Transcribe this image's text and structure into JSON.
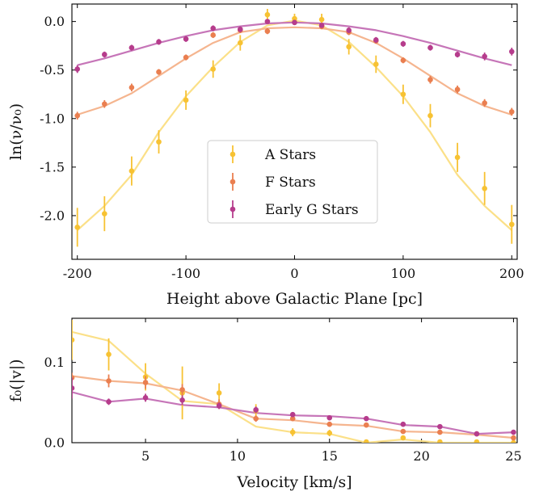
{
  "chart_data": [
    {
      "type": "line",
      "xlabel": "Height above Galactic Plane [pc]",
      "ylabel": "ln(ν/ν₀)",
      "xlim": [
        -205,
        205
      ],
      "ylim": [
        -2.45,
        0.18
      ],
      "xticks": [
        -200,
        -100,
        0,
        100,
        200
      ],
      "xtick_labels": [
        "-200",
        "-100",
        "0",
        "100",
        "200"
      ],
      "yticks": [
        0,
        -0.5,
        -1,
        -1.5,
        -2
      ],
      "ytick_labels": [
        "0.0",
        "-0.5",
        "-1.0",
        "-1.5",
        "-2.0"
      ],
      "grid": false,
      "legend_position": "center",
      "series": [
        {
          "name": "A Stars",
          "color": "#f7c233",
          "line_color": "#fbe088",
          "points": [
            {
              "x": -200,
              "y": -2.12,
              "err": 0.2
            },
            {
              "x": -175,
              "y": -1.98,
              "err": 0.18
            },
            {
              "x": -150,
              "y": -1.54,
              "err": 0.15
            },
            {
              "x": -125,
              "y": -1.24,
              "err": 0.12
            },
            {
              "x": -100,
              "y": -0.81,
              "err": 0.1
            },
            {
              "x": -75,
              "y": -0.49,
              "err": 0.09
            },
            {
              "x": -50,
              "y": -0.22,
              "err": 0.08
            },
            {
              "x": -25,
              "y": 0.07,
              "err": 0.06
            },
            {
              "x": 0,
              "y": 0.03,
              "err": 0.05
            },
            {
              "x": 25,
              "y": 0.02,
              "err": 0.06
            },
            {
              "x": 50,
              "y": -0.26,
              "err": 0.08
            },
            {
              "x": 75,
              "y": -0.44,
              "err": 0.09
            },
            {
              "x": 100,
              "y": -0.75,
              "err": 0.1
            },
            {
              "x": 125,
              "y": -0.97,
              "err": 0.12
            },
            {
              "x": 150,
              "y": -1.4,
              "err": 0.15
            },
            {
              "x": 175,
              "y": -1.72,
              "err": 0.17
            },
            {
              "x": 200,
              "y": -2.09,
              "err": 0.2
            }
          ],
          "curve": [
            {
              "x": -200,
              "y": -2.15
            },
            {
              "x": -175,
              "y": -1.9
            },
            {
              "x": -150,
              "y": -1.58
            },
            {
              "x": -125,
              "y": -1.14
            },
            {
              "x": -100,
              "y": -0.77
            },
            {
              "x": -75,
              "y": -0.47
            },
            {
              "x": -50,
              "y": -0.21
            },
            {
              "x": -25,
              "y": -0.04
            },
            {
              "x": 0,
              "y": 0.01
            },
            {
              "x": 25,
              "y": -0.04
            },
            {
              "x": 50,
              "y": -0.21
            },
            {
              "x": 75,
              "y": -0.47
            },
            {
              "x": 100,
              "y": -0.77
            },
            {
              "x": 125,
              "y": -1.14
            },
            {
              "x": 150,
              "y": -1.58
            },
            {
              "x": 175,
              "y": -1.9
            },
            {
              "x": 200,
              "y": -2.15
            }
          ]
        },
        {
          "name": "F Stars",
          "color": "#ea7f50",
          "line_color": "#f5b58f",
          "points": [
            {
              "x": -200,
              "y": -0.97,
              "err": 0.04
            },
            {
              "x": -175,
              "y": -0.85,
              "err": 0.04
            },
            {
              "x": -150,
              "y": -0.68,
              "err": 0.04
            },
            {
              "x": -125,
              "y": -0.52,
              "err": 0.03
            },
            {
              "x": -100,
              "y": -0.37,
              "err": 0.03
            },
            {
              "x": -75,
              "y": -0.14,
              "err": 0.03
            },
            {
              "x": -50,
              "y": -0.09,
              "err": 0.03
            },
            {
              "x": -25,
              "y": -0.1,
              "err": 0.03
            },
            {
              "x": 0,
              "y": -0.01,
              "err": 0.02
            },
            {
              "x": 25,
              "y": -0.05,
              "err": 0.03
            },
            {
              "x": 50,
              "y": -0.11,
              "err": 0.03
            },
            {
              "x": 75,
              "y": -0.2,
              "err": 0.03
            },
            {
              "x": 100,
              "y": -0.4,
              "err": 0.03
            },
            {
              "x": 125,
              "y": -0.6,
              "err": 0.04
            },
            {
              "x": 150,
              "y": -0.7,
              "err": 0.04
            },
            {
              "x": 175,
              "y": -0.84,
              "err": 0.04
            },
            {
              "x": 200,
              "y": -0.93,
              "err": 0.04
            }
          ],
          "curve": [
            {
              "x": -200,
              "y": -0.96
            },
            {
              "x": -175,
              "y": -0.87
            },
            {
              "x": -150,
              "y": -0.74
            },
            {
              "x": -125,
              "y": -0.56
            },
            {
              "x": -100,
              "y": -0.38
            },
            {
              "x": -75,
              "y": -0.22
            },
            {
              "x": -50,
              "y": -0.11
            },
            {
              "x": -25,
              "y": -0.07
            },
            {
              "x": 0,
              "y": -0.06
            },
            {
              "x": 25,
              "y": -0.07
            },
            {
              "x": 50,
              "y": -0.11
            },
            {
              "x": 75,
              "y": -0.22
            },
            {
              "x": 100,
              "y": -0.38
            },
            {
              "x": 125,
              "y": -0.56
            },
            {
              "x": 150,
              "y": -0.74
            },
            {
              "x": 175,
              "y": -0.87
            },
            {
              "x": 200,
              "y": -0.96
            }
          ]
        },
        {
          "name": "Early G Stars",
          "color": "#b63c8c",
          "line_color": "#c675b8",
          "points": [
            {
              "x": -200,
              "y": -0.49,
              "err": 0.04
            },
            {
              "x": -175,
              "y": -0.34,
              "err": 0.03
            },
            {
              "x": -150,
              "y": -0.27,
              "err": 0.03
            },
            {
              "x": -125,
              "y": -0.21,
              "err": 0.03
            },
            {
              "x": -100,
              "y": -0.18,
              "err": 0.03
            },
            {
              "x": -75,
              "y": -0.07,
              "err": 0.03
            },
            {
              "x": -50,
              "y": -0.08,
              "err": 0.03
            },
            {
              "x": -25,
              "y": 0.0,
              "err": 0.02
            },
            {
              "x": 0,
              "y": -0.01,
              "err": 0.02
            },
            {
              "x": 25,
              "y": -0.04,
              "err": 0.02
            },
            {
              "x": 50,
              "y": -0.09,
              "err": 0.03
            },
            {
              "x": 75,
              "y": -0.19,
              "err": 0.03
            },
            {
              "x": 100,
              "y": -0.23,
              "err": 0.03
            },
            {
              "x": 125,
              "y": -0.27,
              "err": 0.03
            },
            {
              "x": 150,
              "y": -0.34,
              "err": 0.03
            },
            {
              "x": 175,
              "y": -0.36,
              "err": 0.04
            },
            {
              "x": 200,
              "y": -0.31,
              "err": 0.04
            }
          ],
          "curve": [
            {
              "x": -200,
              "y": -0.45
            },
            {
              "x": -175,
              "y": -0.38
            },
            {
              "x": -150,
              "y": -0.3
            },
            {
              "x": -125,
              "y": -0.22
            },
            {
              "x": -100,
              "y": -0.15
            },
            {
              "x": -75,
              "y": -0.09
            },
            {
              "x": -50,
              "y": -0.05
            },
            {
              "x": -25,
              "y": -0.02
            },
            {
              "x": 0,
              "y": -0.01
            },
            {
              "x": 25,
              "y": -0.02
            },
            {
              "x": 50,
              "y": -0.05
            },
            {
              "x": 75,
              "y": -0.09
            },
            {
              "x": 100,
              "y": -0.15
            },
            {
              "x": 125,
              "y": -0.22
            },
            {
              "x": 150,
              "y": -0.3
            },
            {
              "x": 175,
              "y": -0.38
            },
            {
              "x": 200,
              "y": -0.45
            }
          ]
        }
      ]
    },
    {
      "type": "line",
      "xlabel": "Velocity [km/s]",
      "ylabel": "f₀(|v|)",
      "xlim": [
        1,
        25.2
      ],
      "ylim": [
        0,
        0.155
      ],
      "xticks": [
        5,
        10,
        15,
        20,
        25
      ],
      "xtick_labels": [
        "5",
        "10",
        "15",
        "20",
        "25"
      ],
      "yticks": [
        0,
        0.1
      ],
      "ytick_labels": [
        "0.0",
        "0.1"
      ],
      "grid": false,
      "series": [
        {
          "name": "A Stars",
          "color": "#f7c233",
          "line_color": "#fbe088",
          "points": [
            {
              "x": 1,
              "y": 0.128,
              "err": 0.025
            },
            {
              "x": 3,
              "y": 0.11,
              "err": 0.02
            },
            {
              "x": 5,
              "y": 0.082,
              "err": 0.017
            },
            {
              "x": 7,
              "y": 0.062,
              "err": 0.033
            },
            {
              "x": 9,
              "y": 0.062,
              "err": 0.012
            },
            {
              "x": 11,
              "y": 0.04,
              "err": 0.008
            },
            {
              "x": 13,
              "y": 0.013,
              "err": 0.005
            },
            {
              "x": 15,
              "y": 0.012,
              "err": 0.004
            },
            {
              "x": 17,
              "y": 0.001,
              "err": 0.002
            },
            {
              "x": 19,
              "y": 0.006,
              "err": 0.002
            },
            {
              "x": 21,
              "y": 0.001,
              "err": 0.001
            },
            {
              "x": 23,
              "y": 0.001,
              "err": 0.001
            },
            {
              "x": 25,
              "y": 0.0,
              "err": 0.001
            }
          ],
          "curve": [
            {
              "x": 1,
              "y": 0.138
            },
            {
              "x": 3,
              "y": 0.127
            },
            {
              "x": 5,
              "y": 0.086
            },
            {
              "x": 7,
              "y": 0.052
            },
            {
              "x": 9,
              "y": 0.048
            },
            {
              "x": 11,
              "y": 0.02
            },
            {
              "x": 13,
              "y": 0.013
            },
            {
              "x": 15,
              "y": 0.011
            },
            {
              "x": 17,
              "y": 0.0
            },
            {
              "x": 19,
              "y": 0.004
            },
            {
              "x": 21,
              "y": 0.0
            },
            {
              "x": 23,
              "y": 0.0
            },
            {
              "x": 25,
              "y": 0.0
            }
          ]
        },
        {
          "name": "F Stars",
          "color": "#ea7f50",
          "line_color": "#f5b58f",
          "points": [
            {
              "x": 1,
              "y": 0.081,
              "err": 0.006
            },
            {
              "x": 3,
              "y": 0.077,
              "err": 0.008
            },
            {
              "x": 5,
              "y": 0.075,
              "err": 0.008
            },
            {
              "x": 7,
              "y": 0.066,
              "err": 0.007
            },
            {
              "x": 9,
              "y": 0.048,
              "err": 0.006
            },
            {
              "x": 11,
              "y": 0.03,
              "err": 0.004
            },
            {
              "x": 13,
              "y": 0.03,
              "err": 0.003
            },
            {
              "x": 15,
              "y": 0.023,
              "err": 0.003
            },
            {
              "x": 17,
              "y": 0.022,
              "err": 0.002
            },
            {
              "x": 19,
              "y": 0.014,
              "err": 0.002
            },
            {
              "x": 21,
              "y": 0.013,
              "err": 0.002
            },
            {
              "x": 23,
              "y": 0.011,
              "err": 0.002
            },
            {
              "x": 25,
              "y": 0.006,
              "err": 0.002
            }
          ],
          "curve": [
            {
              "x": 1,
              "y": 0.083
            },
            {
              "x": 3,
              "y": 0.077
            },
            {
              "x": 5,
              "y": 0.074
            },
            {
              "x": 7,
              "y": 0.065
            },
            {
              "x": 9,
              "y": 0.048
            },
            {
              "x": 11,
              "y": 0.03
            },
            {
              "x": 13,
              "y": 0.028
            },
            {
              "x": 15,
              "y": 0.023
            },
            {
              "x": 17,
              "y": 0.021
            },
            {
              "x": 19,
              "y": 0.014
            },
            {
              "x": 21,
              "y": 0.013
            },
            {
              "x": 23,
              "y": 0.01
            },
            {
              "x": 25,
              "y": 0.006
            }
          ]
        },
        {
          "name": "Early G Stars",
          "color": "#b63c8c",
          "line_color": "#c675b8",
          "points": [
            {
              "x": 1,
              "y": 0.068,
              "err": 0.013
            },
            {
              "x": 3,
              "y": 0.051,
              "err": 0.004
            },
            {
              "x": 5,
              "y": 0.056,
              "err": 0.005
            },
            {
              "x": 7,
              "y": 0.053,
              "err": 0.006
            },
            {
              "x": 9,
              "y": 0.046,
              "err": 0.004
            },
            {
              "x": 11,
              "y": 0.041,
              "err": 0.004
            },
            {
              "x": 13,
              "y": 0.035,
              "err": 0.003
            },
            {
              "x": 15,
              "y": 0.031,
              "err": 0.003
            },
            {
              "x": 17,
              "y": 0.03,
              "err": 0.003
            },
            {
              "x": 19,
              "y": 0.023,
              "err": 0.002
            },
            {
              "x": 21,
              "y": 0.02,
              "err": 0.002
            },
            {
              "x": 23,
              "y": 0.011,
              "err": 0.002
            },
            {
              "x": 25,
              "y": 0.013,
              "err": 0.002
            }
          ],
          "curve": [
            {
              "x": 1,
              "y": 0.063
            },
            {
              "x": 3,
              "y": 0.051
            },
            {
              "x": 5,
              "y": 0.055
            },
            {
              "x": 7,
              "y": 0.047
            },
            {
              "x": 9,
              "y": 0.044
            },
            {
              "x": 11,
              "y": 0.037
            },
            {
              "x": 13,
              "y": 0.034
            },
            {
              "x": 15,
              "y": 0.033
            },
            {
              "x": 17,
              "y": 0.03
            },
            {
              "x": 19,
              "y": 0.022
            },
            {
              "x": 21,
              "y": 0.02
            },
            {
              "x": 23,
              "y": 0.011
            },
            {
              "x": 25,
              "y": 0.013
            }
          ]
        }
      ]
    }
  ]
}
